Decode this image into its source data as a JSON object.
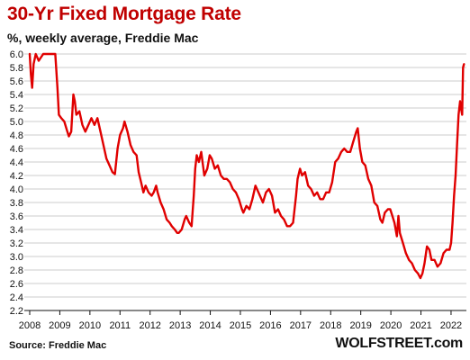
{
  "chart_data": {
    "type": "line",
    "title": "30-Yr Fixed Mortgage Rate",
    "subtitle": "%, weekly average, Freddie Mac",
    "xlabel": "",
    "ylabel": "",
    "xlim": [
      2008.0,
      2022.45
    ],
    "ylim": [
      2.2,
      6.0
    ],
    "y_ticks": [
      "2.2",
      "2.4",
      "2.6",
      "2.8",
      "3.0",
      "3.2",
      "3.4",
      "3.6",
      "3.8",
      "4.0",
      "4.2",
      "4.4",
      "4.6",
      "4.8",
      "5.0",
      "5.2",
      "5.4",
      "5.6",
      "5.8",
      "6.0"
    ],
    "x_ticks": [
      "2008",
      "2009",
      "2010",
      "2011",
      "2012",
      "2013",
      "2014",
      "2015",
      "2016",
      "2017",
      "2018",
      "2019",
      "2020",
      "2021",
      "2022"
    ],
    "grid": "horizontal",
    "legend": "none",
    "line_color": "#e00000",
    "series": [
      {
        "values": [
          [
            2008.0,
            6.0
          ],
          [
            2008.04,
            5.7
          ],
          [
            2008.08,
            5.5
          ],
          [
            2008.13,
            5.85
          ],
          [
            2008.2,
            6.0
          ],
          [
            2008.3,
            5.9
          ],
          [
            2008.45,
            6.0
          ],
          [
            2008.6,
            6.0
          ],
          [
            2008.75,
            6.0
          ],
          [
            2008.85,
            6.0
          ],
          [
            2008.92,
            5.5
          ],
          [
            2008.97,
            5.1
          ],
          [
            2009.05,
            5.05
          ],
          [
            2009.15,
            5.0
          ],
          [
            2009.25,
            4.85
          ],
          [
            2009.3,
            4.78
          ],
          [
            2009.38,
            4.85
          ],
          [
            2009.45,
            5.4
          ],
          [
            2009.5,
            5.3
          ],
          [
            2009.55,
            5.1
          ],
          [
            2009.65,
            5.15
          ],
          [
            2009.75,
            4.95
          ],
          [
            2009.85,
            4.85
          ],
          [
            2009.95,
            4.95
          ],
          [
            2010.05,
            5.05
          ],
          [
            2010.15,
            4.95
          ],
          [
            2010.25,
            5.05
          ],
          [
            2010.35,
            4.85
          ],
          [
            2010.45,
            4.65
          ],
          [
            2010.55,
            4.45
          ],
          [
            2010.65,
            4.35
          ],
          [
            2010.75,
            4.25
          ],
          [
            2010.83,
            4.22
          ],
          [
            2010.92,
            4.6
          ],
          [
            2011.0,
            4.8
          ],
          [
            2011.1,
            4.9
          ],
          [
            2011.15,
            5.0
          ],
          [
            2011.25,
            4.85
          ],
          [
            2011.35,
            4.65
          ],
          [
            2011.45,
            4.55
          ],
          [
            2011.55,
            4.5
          ],
          [
            2011.62,
            4.25
          ],
          [
            2011.7,
            4.1
          ],
          [
            2011.78,
            3.95
          ],
          [
            2011.85,
            4.05
          ],
          [
            2011.95,
            3.95
          ],
          [
            2012.05,
            3.9
          ],
          [
            2012.12,
            3.95
          ],
          [
            2012.2,
            4.05
          ],
          [
            2012.25,
            3.95
          ],
          [
            2012.35,
            3.8
          ],
          [
            2012.45,
            3.7
          ],
          [
            2012.55,
            3.55
          ],
          [
            2012.65,
            3.5
          ],
          [
            2012.72,
            3.45
          ],
          [
            2012.82,
            3.4
          ],
          [
            2012.9,
            3.35
          ],
          [
            2012.95,
            3.35
          ],
          [
            2013.05,
            3.4
          ],
          [
            2013.15,
            3.55
          ],
          [
            2013.2,
            3.6
          ],
          [
            2013.3,
            3.5
          ],
          [
            2013.38,
            3.45
          ],
          [
            2013.45,
            3.9
          ],
          [
            2013.5,
            4.3
          ],
          [
            2013.55,
            4.5
          ],
          [
            2013.62,
            4.4
          ],
          [
            2013.7,
            4.55
          ],
          [
            2013.8,
            4.2
          ],
          [
            2013.9,
            4.3
          ],
          [
            2013.98,
            4.5
          ],
          [
            2014.05,
            4.45
          ],
          [
            2014.15,
            4.3
          ],
          [
            2014.25,
            4.35
          ],
          [
            2014.35,
            4.2
          ],
          [
            2014.45,
            4.15
          ],
          [
            2014.55,
            4.15
          ],
          [
            2014.65,
            4.1
          ],
          [
            2014.75,
            4.0
          ],
          [
            2014.85,
            3.95
          ],
          [
            2014.95,
            3.85
          ],
          [
            2015.05,
            3.7
          ],
          [
            2015.1,
            3.65
          ],
          [
            2015.2,
            3.75
          ],
          [
            2015.3,
            3.7
          ],
          [
            2015.4,
            3.85
          ],
          [
            2015.5,
            4.05
          ],
          [
            2015.55,
            4.0
          ],
          [
            2015.65,
            3.9
          ],
          [
            2015.75,
            3.8
          ],
          [
            2015.85,
            3.95
          ],
          [
            2015.95,
            4.0
          ],
          [
            2016.05,
            3.9
          ],
          [
            2016.15,
            3.65
          ],
          [
            2016.25,
            3.7
          ],
          [
            2016.35,
            3.6
          ],
          [
            2016.45,
            3.55
          ],
          [
            2016.55,
            3.45
          ],
          [
            2016.65,
            3.45
          ],
          [
            2016.75,
            3.5
          ],
          [
            2016.85,
            3.9
          ],
          [
            2016.9,
            4.15
          ],
          [
            2016.98,
            4.3
          ],
          [
            2017.05,
            4.2
          ],
          [
            2017.15,
            4.25
          ],
          [
            2017.25,
            4.05
          ],
          [
            2017.35,
            4.0
          ],
          [
            2017.45,
            3.9
          ],
          [
            2017.55,
            3.95
          ],
          [
            2017.65,
            3.85
          ],
          [
            2017.75,
            3.85
          ],
          [
            2017.85,
            3.95
          ],
          [
            2017.95,
            3.95
          ],
          [
            2018.05,
            4.1
          ],
          [
            2018.15,
            4.4
          ],
          [
            2018.25,
            4.45
          ],
          [
            2018.35,
            4.55
          ],
          [
            2018.45,
            4.6
          ],
          [
            2018.55,
            4.55
          ],
          [
            2018.65,
            4.55
          ],
          [
            2018.75,
            4.7
          ],
          [
            2018.85,
            4.85
          ],
          [
            2018.9,
            4.9
          ],
          [
            2018.97,
            4.6
          ],
          [
            2019.05,
            4.4
          ],
          [
            2019.15,
            4.35
          ],
          [
            2019.25,
            4.15
          ],
          [
            2019.35,
            4.05
          ],
          [
            2019.45,
            3.8
          ],
          [
            2019.55,
            3.75
          ],
          [
            2019.65,
            3.55
          ],
          [
            2019.72,
            3.5
          ],
          [
            2019.8,
            3.65
          ],
          [
            2019.9,
            3.7
          ],
          [
            2019.98,
            3.7
          ],
          [
            2020.05,
            3.6
          ],
          [
            2020.12,
            3.5
          ],
          [
            2020.2,
            3.3
          ],
          [
            2020.25,
            3.6
          ],
          [
            2020.3,
            3.35
          ],
          [
            2020.4,
            3.2
          ],
          [
            2020.5,
            3.05
          ],
          [
            2020.6,
            2.95
          ],
          [
            2020.7,
            2.9
          ],
          [
            2020.8,
            2.8
          ],
          [
            2020.9,
            2.75
          ],
          [
            2020.98,
            2.68
          ],
          [
            2021.05,
            2.75
          ],
          [
            2021.12,
            2.9
          ],
          [
            2021.2,
            3.15
          ],
          [
            2021.28,
            3.1
          ],
          [
            2021.35,
            2.95
          ],
          [
            2021.45,
            2.95
          ],
          [
            2021.55,
            2.85
          ],
          [
            2021.65,
            2.9
          ],
          [
            2021.75,
            3.05
          ],
          [
            2021.85,
            3.1
          ],
          [
            2021.95,
            3.1
          ],
          [
            2022.0,
            3.2
          ],
          [
            2022.05,
            3.5
          ],
          [
            2022.1,
            3.9
          ],
          [
            2022.15,
            4.2
          ],
          [
            2022.2,
            4.65
          ],
          [
            2022.25,
            5.1
          ],
          [
            2022.3,
            5.3
          ],
          [
            2022.33,
            5.2
          ],
          [
            2022.37,
            5.1
          ],
          [
            2022.4,
            5.8
          ],
          [
            2022.43,
            5.85
          ]
        ]
      }
    ]
  },
  "footer": {
    "source": "Source: Freddie Mac",
    "brand": "WOLFSTREET.com"
  }
}
